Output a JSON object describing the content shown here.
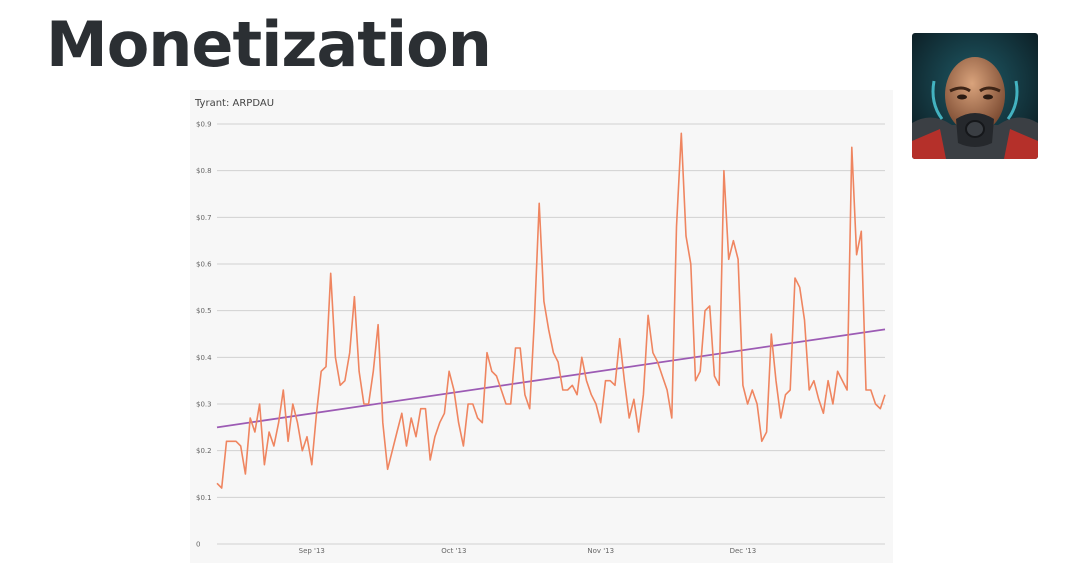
{
  "slide": {
    "title": "Monetization"
  },
  "avatar": {
    "icon": "tyrant-game-icon"
  },
  "chart_data": {
    "type": "line",
    "title": "Tyrant: ARPDAU",
    "xlabel": "",
    "ylabel": "",
    "ylim": [
      0,
      0.9
    ],
    "y_ticks": [
      0,
      0.1,
      0.2,
      0.3,
      0.4,
      0.5,
      0.6,
      0.7,
      0.8,
      0.9
    ],
    "y_tick_labels": [
      "0",
      "$0.1",
      "$0.2",
      "$0.3",
      "$0.4",
      "$0.5",
      "$0.6",
      "$0.7",
      "$0.8",
      "$0.9"
    ],
    "x_range_days": [
      0,
      141
    ],
    "x_ticks": [
      {
        "day": 20,
        "label": "Sep '13"
      },
      {
        "day": 50,
        "label": "Oct '13"
      },
      {
        "day": 81,
        "label": "Nov '13"
      },
      {
        "day": 111,
        "label": "Dec '13"
      }
    ],
    "grid": true,
    "series": [
      {
        "name": "ARPDAU",
        "color": "#ef8560",
        "values": [
          0.13,
          0.12,
          0.22,
          0.22,
          0.22,
          0.21,
          0.15,
          0.27,
          0.24,
          0.3,
          0.17,
          0.24,
          0.21,
          0.26,
          0.33,
          0.22,
          0.3,
          0.26,
          0.2,
          0.23,
          0.17,
          0.28,
          0.37,
          0.38,
          0.58,
          0.4,
          0.34,
          0.35,
          0.41,
          0.53,
          0.37,
          0.3,
          0.3,
          0.37,
          0.47,
          0.26,
          0.16,
          0.2,
          0.24,
          0.28,
          0.21,
          0.27,
          0.23,
          0.29,
          0.29,
          0.18,
          0.23,
          0.26,
          0.28,
          0.37,
          0.33,
          0.26,
          0.21,
          0.3,
          0.3,
          0.27,
          0.26,
          0.41,
          0.37,
          0.36,
          0.33,
          0.3,
          0.3,
          0.42,
          0.42,
          0.32,
          0.29,
          0.48,
          0.73,
          0.52,
          0.46,
          0.41,
          0.39,
          0.33,
          0.33,
          0.34,
          0.32,
          0.4,
          0.35,
          0.32,
          0.3,
          0.26,
          0.35,
          0.35,
          0.34,
          0.44,
          0.35,
          0.27,
          0.31,
          0.24,
          0.32,
          0.49,
          0.41,
          0.39,
          0.36,
          0.33,
          0.27,
          0.68,
          0.88,
          0.66,
          0.6,
          0.35,
          0.37,
          0.5,
          0.51,
          0.36,
          0.34,
          0.8,
          0.61,
          0.65,
          0.61,
          0.34,
          0.3,
          0.33,
          0.3,
          0.22,
          0.24,
          0.45,
          0.35,
          0.27,
          0.32,
          0.33,
          0.57,
          0.55,
          0.48,
          0.33,
          0.35,
          0.31,
          0.28,
          0.35,
          0.3,
          0.37,
          0.35,
          0.33,
          0.85,
          0.62,
          0.67,
          0.33,
          0.33,
          0.3,
          0.29,
          0.32
        ]
      },
      {
        "name": "Trend",
        "color": "#9c5bb4",
        "type": "linear",
        "values": [
          0.25,
          0.46
        ]
      }
    ]
  }
}
